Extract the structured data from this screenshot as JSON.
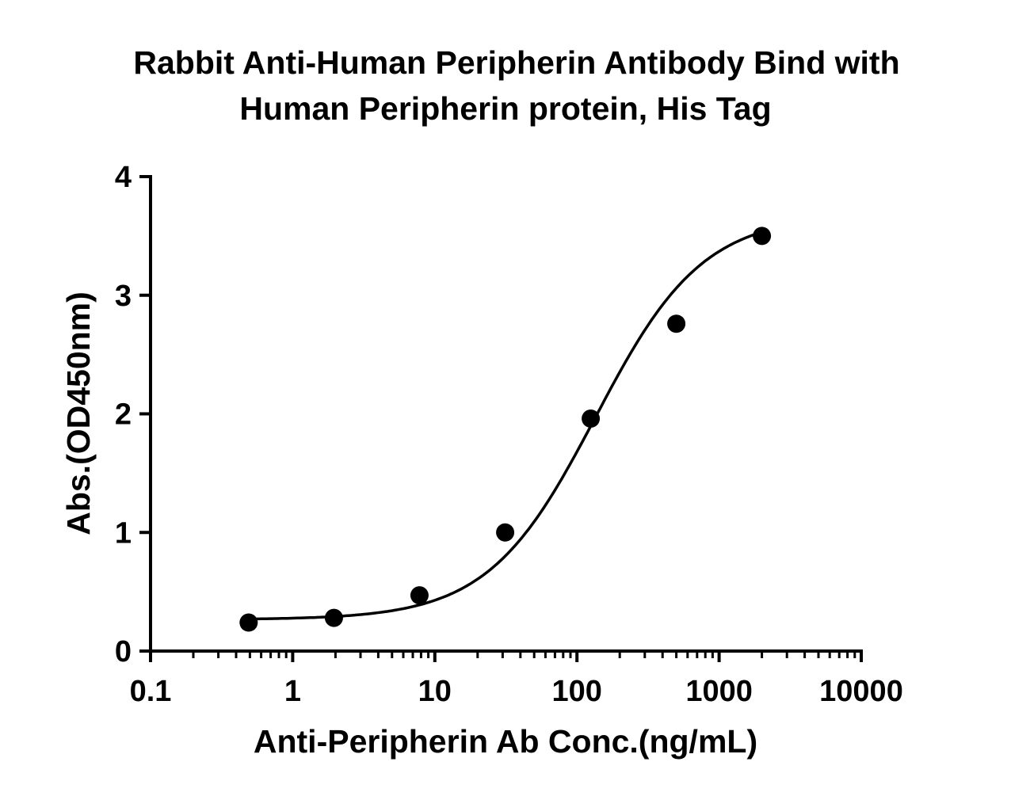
{
  "chart_data": {
    "type": "scatter",
    "title_lines": [
      "Rabbit Anti-Human Peripherin Antibody Bind with",
      "Human Peripherin protein, His Tag"
    ],
    "xlabel": "Anti-Peripherin Ab Conc.(ng/mL)",
    "ylabel": "Abs.(OD450nm)",
    "x_scale": "log",
    "xlim": [
      0.1,
      10000
    ],
    "ylim": [
      0,
      4
    ],
    "x_ticks": [
      0.1,
      1,
      10,
      100,
      1000,
      10000
    ],
    "x_tick_labels": [
      "0.1",
      "1",
      "10",
      "100",
      "1000",
      "10000"
    ],
    "y_ticks": [
      0,
      1,
      2,
      3,
      4
    ],
    "y_tick_labels": [
      "0",
      "1",
      "2",
      "3",
      "4"
    ],
    "grid": false,
    "series": [
      {
        "x": [
          0.49,
          1.95,
          7.8,
          31.25,
          125,
          500,
          2000
        ],
        "y": [
          0.24,
          0.28,
          0.47,
          1.0,
          1.96,
          2.76,
          3.5
        ],
        "marker": "circle",
        "color": "#000000"
      }
    ],
    "fit_curve": {
      "model": "4PL",
      "bottom": 0.265,
      "top": 3.68,
      "ec50": 135,
      "hill": 1.15,
      "x_range": [
        0.49,
        2000
      ],
      "color": "#000000"
    }
  }
}
